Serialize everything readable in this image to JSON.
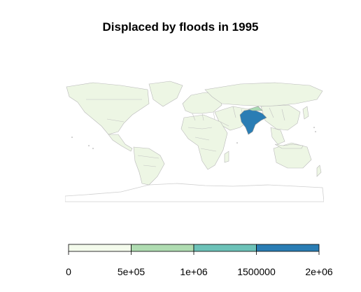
{
  "title": "Displaced by floods in 1995",
  "colors": {
    "ocean": "#ffffff",
    "land": "#edf6e4",
    "border": "#b9b9b9",
    "highlight": "#2a7db4",
    "highlight_light": "#a8dbb3"
  },
  "highlighted_country": "India",
  "legend": {
    "breaks": [
      0,
      500000,
      1000000,
      1500000,
      2000000
    ],
    "labels": [
      "0",
      "5e+05",
      "1e+06",
      "1500000",
      "2e+06"
    ],
    "colors": [
      "#f4fbec",
      "#afdcb1",
      "#6cc2b8",
      "#2a7db4"
    ]
  }
}
